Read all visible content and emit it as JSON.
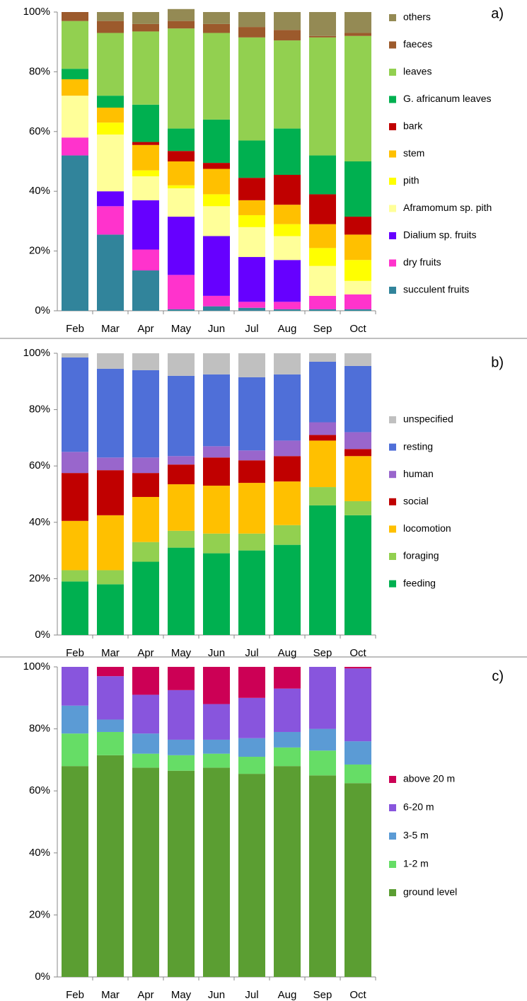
{
  "chart_data": [
    {
      "type": "bar",
      "stacked": true,
      "title": "a)",
      "categories": [
        "Feb",
        "Mar",
        "Apr",
        "May",
        "Jun",
        "Jul",
        "Aug",
        "Sep",
        "Oct"
      ],
      "ylim": [
        0,
        100
      ],
      "yticks": [
        {
          "value": 0,
          "label": "0%"
        },
        {
          "value": 20,
          "label": "20%"
        },
        {
          "value": 40,
          "label": "40%"
        },
        {
          "value": 60,
          "label": "60%"
        },
        {
          "value": 80,
          "label": "80%"
        },
        {
          "value": 100,
          "label": "100%"
        }
      ],
      "series": [
        {
          "name": "succulent fruits",
          "color": "#31849b",
          "values": [
            52,
            25.5,
            13.5,
            0.5,
            1.5,
            1,
            0.5,
            0.5,
            0.5
          ]
        },
        {
          "name": "dry fruits",
          "color": "#ff33cc",
          "values": [
            6,
            9.5,
            7,
            11.5,
            3.5,
            2,
            2.5,
            4.5,
            5
          ]
        },
        {
          "name": "Dialium sp. fruits",
          "color": "#6600ff",
          "values": [
            0,
            5,
            16.5,
            19.5,
            20,
            15,
            14,
            0,
            0
          ]
        },
        {
          "name": "Aframomum sp. pith",
          "color": "#ffff99",
          "values": [
            14,
            19,
            8,
            9.5,
            10,
            10,
            8,
            10,
            4.5
          ]
        },
        {
          "name": "pith",
          "color": "#ffff00",
          "values": [
            0,
            4,
            2,
            1,
            4,
            4,
            4,
            6,
            7
          ]
        },
        {
          "name": "stem",
          "color": "#ffc000",
          "values": [
            5.5,
            5,
            8.5,
            8,
            8.5,
            5,
            6.5,
            8,
            8.5
          ]
        },
        {
          "name": "bark",
          "color": "#c00000",
          "values": [
            0,
            0,
            1,
            3.5,
            2,
            7.5,
            10,
            10,
            6
          ]
        },
        {
          "name": "G. africanum leaves",
          "color": "#00b050",
          "values": [
            3.5,
            4,
            12.5,
            7.5,
            14.5,
            12.5,
            15.5,
            13,
            18.5
          ]
        },
        {
          "name": "leaves",
          "color": "#92d050",
          "values": [
            16,
            21,
            24.5,
            33.5,
            29,
            34.5,
            29.5,
            39.5,
            42
          ]
        },
        {
          "name": "faeces",
          "color": "#9c5a2c",
          "values": [
            3,
            4,
            2.5,
            2.5,
            3,
            3.5,
            3.5,
            0.5,
            1
          ]
        },
        {
          "name": "others",
          "color": "#948a54",
          "values": [
            0,
            3,
            4,
            4,
            4,
            5,
            6,
            8,
            7
          ]
        }
      ]
    },
    {
      "type": "bar",
      "stacked": true,
      "title": "b)",
      "categories": [
        "Feb",
        "Mar",
        "Apr",
        "May",
        "Jun",
        "Jul",
        "Aug",
        "Sep",
        "Oct"
      ],
      "ylim": [
        0,
        100
      ],
      "yticks": [
        {
          "value": 0,
          "label": "0%"
        },
        {
          "value": 20,
          "label": "20%"
        },
        {
          "value": 40,
          "label": "40%"
        },
        {
          "value": 60,
          "label": "60%"
        },
        {
          "value": 80,
          "label": "80%"
        },
        {
          "value": 100,
          "label": "100%"
        }
      ],
      "series": [
        {
          "name": "feeding",
          "color": "#00b050",
          "values": [
            19,
            18,
            26,
            31,
            29,
            30,
            32,
            46,
            42.5
          ]
        },
        {
          "name": "foraging",
          "color": "#92d050",
          "values": [
            4,
            5,
            7,
            6,
            7,
            6,
            7,
            6.5,
            5
          ]
        },
        {
          "name": "locomotion",
          "color": "#ffc000",
          "values": [
            17.5,
            19.5,
            16,
            16.5,
            17,
            18,
            15.5,
            16.5,
            16
          ]
        },
        {
          "name": "social",
          "color": "#c00000",
          "values": [
            17,
            16,
            8.5,
            7,
            10,
            8,
            9,
            2,
            2.5
          ]
        },
        {
          "name": "human",
          "color": "#9966cc",
          "values": [
            7.5,
            4.5,
            5.5,
            3,
            4,
            3.5,
            5.5,
            4.5,
            6
          ]
        },
        {
          "name": "resting",
          "color": "#4f6fd8",
          "values": [
            33.5,
            31.5,
            31,
            28.5,
            25.5,
            26,
            23.5,
            21.5,
            23.5
          ]
        },
        {
          "name": "unspecified",
          "color": "#c0c0c0",
          "values": [
            1.5,
            5.5,
            6,
            8,
            7.5,
            8.5,
            7.5,
            3,
            4.5
          ]
        }
      ]
    },
    {
      "type": "bar",
      "stacked": true,
      "title": "c)",
      "categories": [
        "Feb",
        "Mar",
        "Apr",
        "May",
        "Jun",
        "Jul",
        "Aug",
        "Sep",
        "Oct"
      ],
      "ylim": [
        0,
        100
      ],
      "yticks": [
        {
          "value": 0,
          "label": "0%"
        },
        {
          "value": 20,
          "label": "20%"
        },
        {
          "value": 40,
          "label": "40%"
        },
        {
          "value": 60,
          "label": "60%"
        },
        {
          "value": 80,
          "label": "80%"
        },
        {
          "value": 100,
          "label": "100%"
        }
      ],
      "series": [
        {
          "name": "ground level",
          "color": "#5b9e32",
          "values": [
            68,
            71.5,
            67.5,
            66.5,
            67.5,
            65.5,
            68,
            65,
            62.5
          ]
        },
        {
          "name": "1-2 m",
          "color": "#66dd66",
          "values": [
            10.5,
            7.5,
            4.5,
            5,
            4.5,
            5.5,
            6,
            8,
            6
          ]
        },
        {
          "name": "3-5 m",
          "color": "#5b9bd5",
          "values": [
            9,
            4,
            6.5,
            5,
            4.5,
            6,
            5,
            7,
            7.5
          ]
        },
        {
          "name": "6-20 m",
          "color": "#8855dd",
          "values": [
            12.5,
            14,
            12.5,
            16,
            11.5,
            13,
            14,
            20,
            23.5
          ]
        },
        {
          "name": "above 20 m",
          "color": "#cc0055",
          "values": [
            0,
            3,
            9,
            7.5,
            12,
            10,
            7,
            0,
            0.5
          ]
        }
      ]
    }
  ]
}
